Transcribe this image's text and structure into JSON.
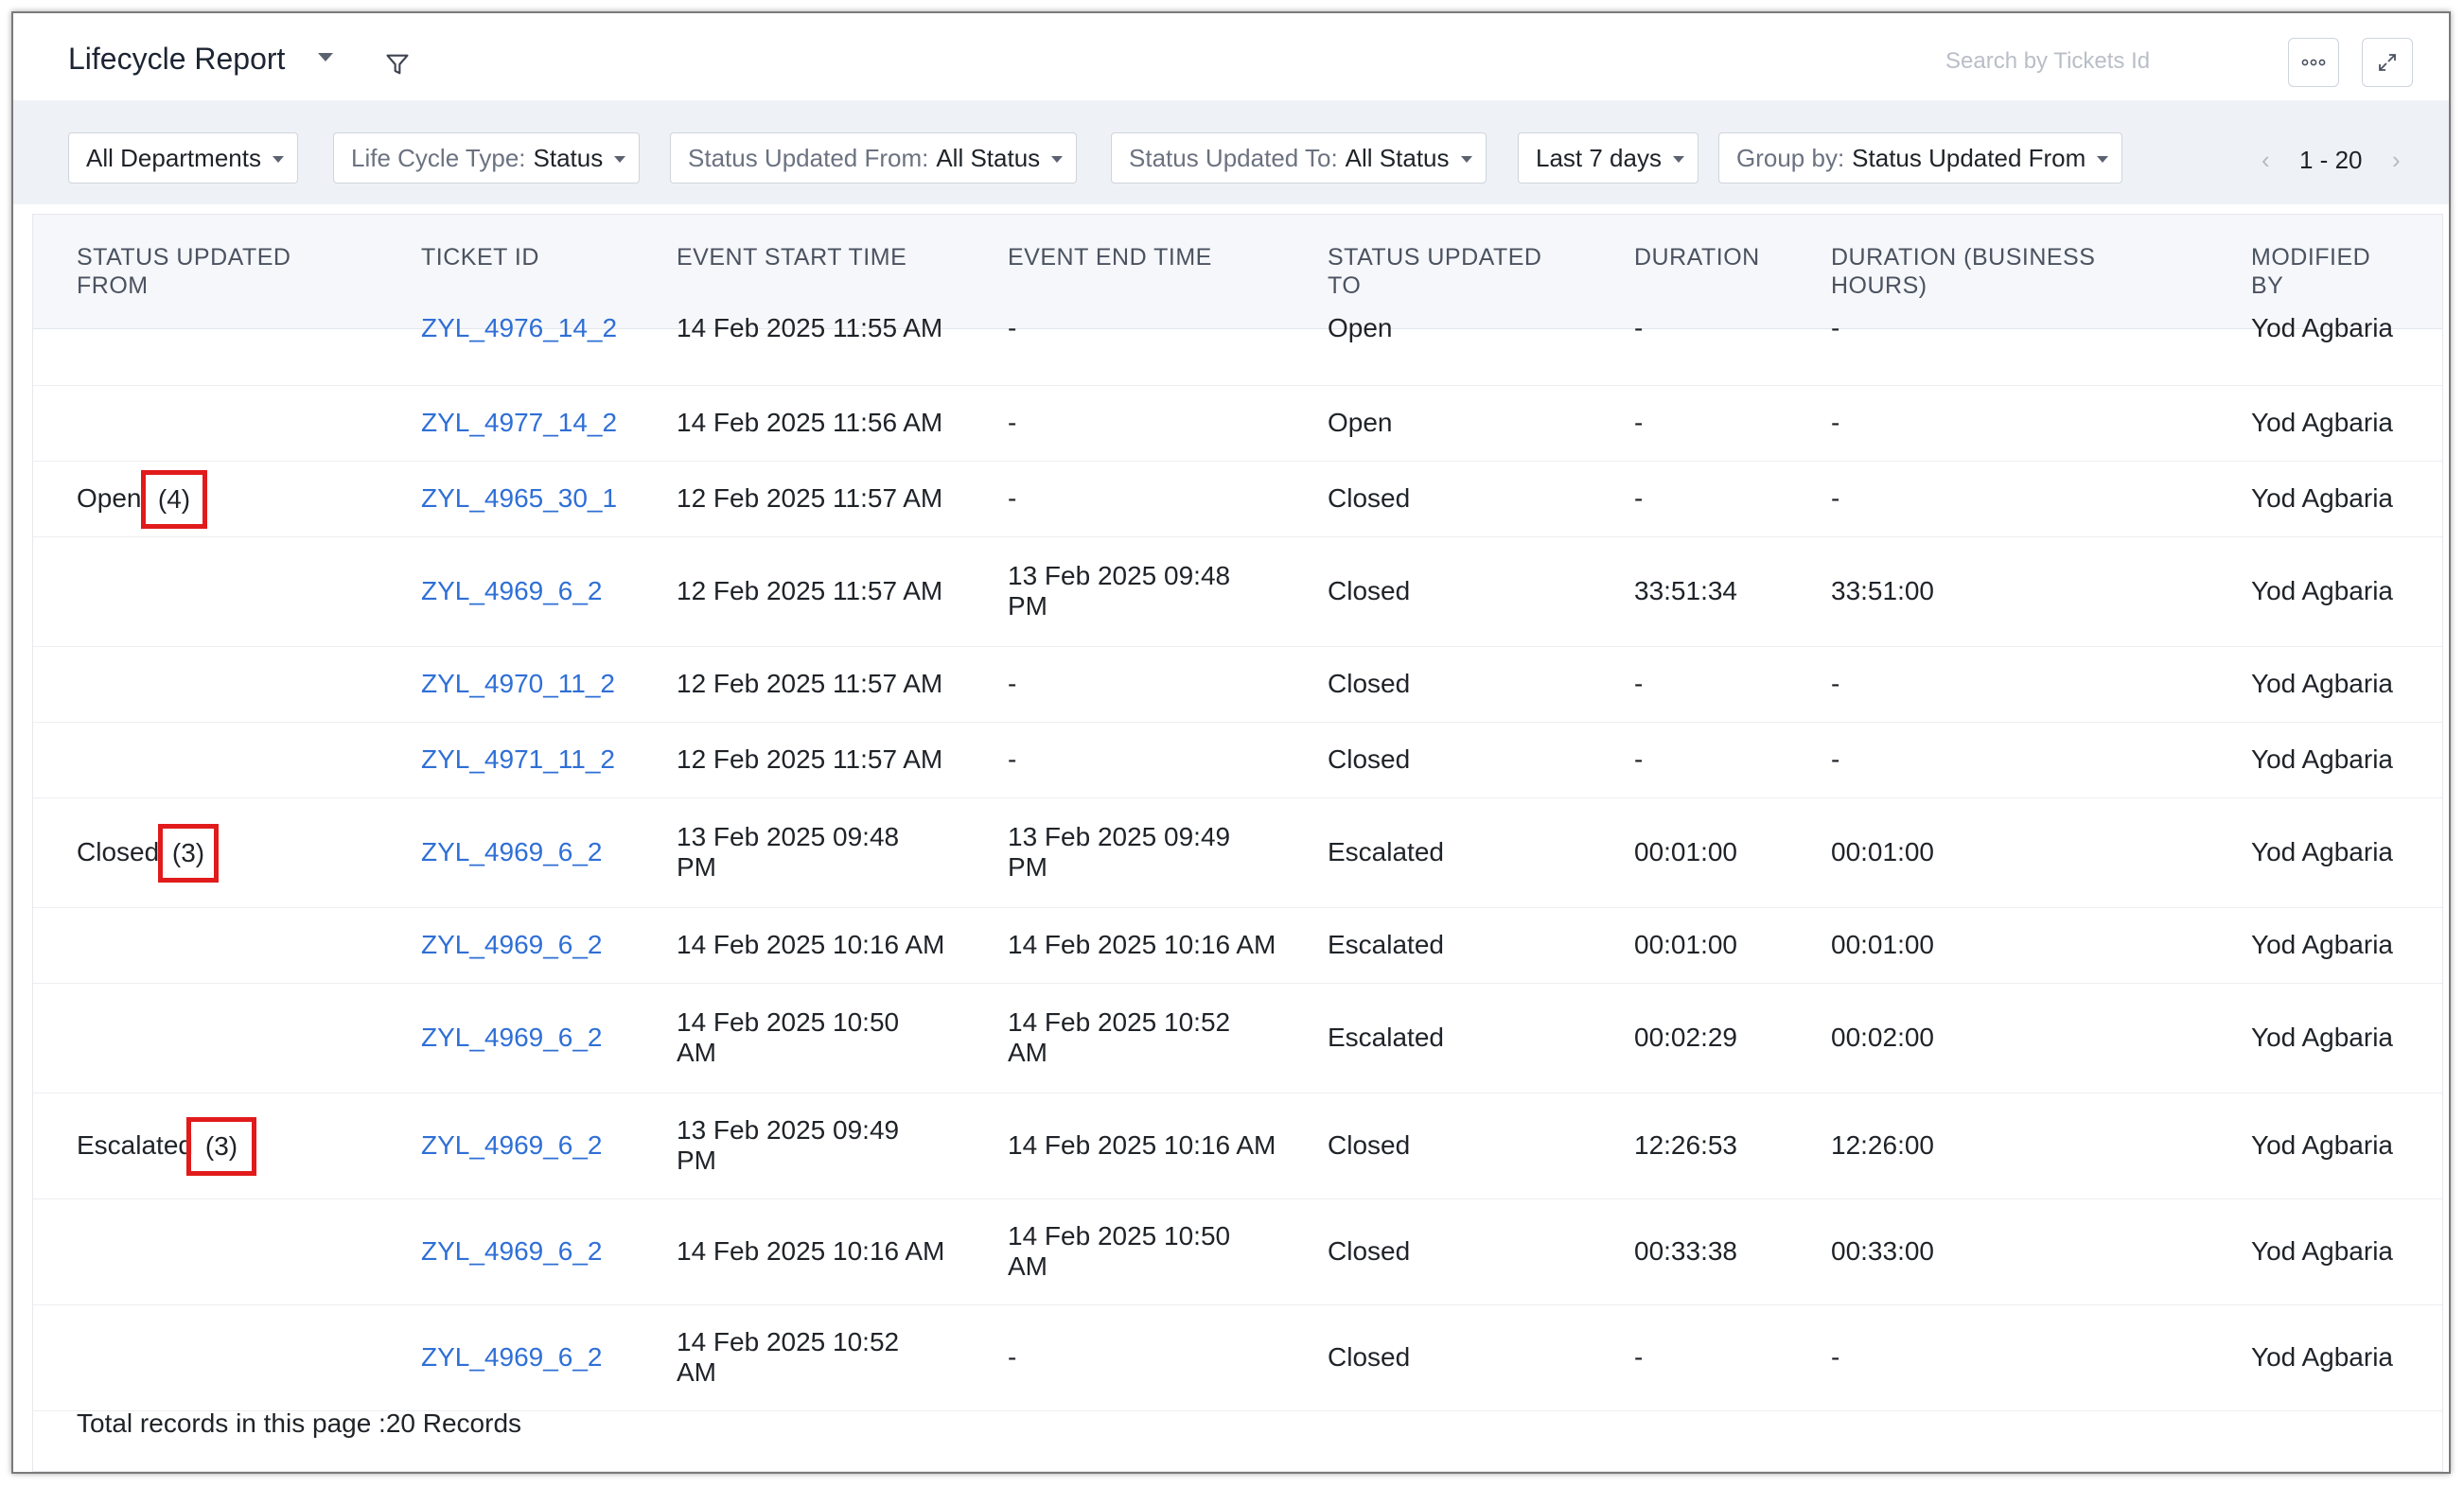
{
  "header": {
    "title": "Lifecycle Report",
    "search_placeholder": "Search by Tickets Id",
    "more_icon": "more-horizontal-icon",
    "expand_icon": "expand-icon"
  },
  "filters": {
    "departments": {
      "value": "All Departments"
    },
    "lifecycle_type": {
      "label": "Life Cycle Type:",
      "value": "Status"
    },
    "status_from": {
      "label": "Status Updated From:",
      "value": "All Status"
    },
    "status_to": {
      "label": "Status Updated To:",
      "value": "All Status"
    },
    "period": {
      "value": "Last 7 days"
    },
    "group_by": {
      "label": "Group by:",
      "value": "Status Updated From"
    }
  },
  "pagination": {
    "range": "1 - 20",
    "prev": "‹",
    "next": "›"
  },
  "table": {
    "headers": {
      "status_from_line1": "STATUS UPDATED",
      "status_from_line2": "FROM",
      "ticket_id": "TICKET ID",
      "event_start": "EVENT START TIME",
      "event_end": "EVENT END TIME",
      "status_to_line1": "STATUS UPDATED",
      "status_to_line2": "TO",
      "duration": "DURATION",
      "duration_bh_line1": "DURATION (BUSINESS",
      "duration_bh_line2": "HOURS)",
      "modified_line1": "MODIFIED",
      "modified_line2": "BY"
    },
    "rows": [
      {
        "group": "",
        "count": "",
        "ticket": "ZYL_4976_14_2",
        "start1": "14 Feb 2025 11:55 AM",
        "start2": "",
        "end1": "-",
        "end2": "",
        "to": "Open",
        "duration": "-",
        "duration_bh": "-",
        "modified": "Yod Agbaria"
      },
      {
        "group": "",
        "count": "",
        "ticket": "ZYL_4977_14_2",
        "start1": "14 Feb 2025 11:56 AM",
        "start2": "",
        "end1": "-",
        "end2": "",
        "to": "Open",
        "duration": "-",
        "duration_bh": "-",
        "modified": "Yod Agbaria"
      },
      {
        "group": "Open",
        "count": "(4)",
        "ticket": "ZYL_4965_30_1",
        "start1": "12 Feb 2025 11:57 AM",
        "start2": "",
        "end1": "-",
        "end2": "",
        "to": "Closed",
        "duration": "-",
        "duration_bh": "-",
        "modified": "Yod Agbaria"
      },
      {
        "group": "",
        "count": "",
        "ticket": "ZYL_4969_6_2",
        "start1": "12 Feb 2025 11:57 AM",
        "start2": "",
        "end1": "13 Feb 2025 09:48",
        "end2": "PM",
        "to": "Closed",
        "duration": "33:51:34",
        "duration_bh": "33:51:00",
        "modified": "Yod Agbaria"
      },
      {
        "group": "",
        "count": "",
        "ticket": "ZYL_4970_11_2",
        "start1": "12 Feb 2025 11:57 AM",
        "start2": "",
        "end1": "-",
        "end2": "",
        "to": "Closed",
        "duration": "-",
        "duration_bh": "-",
        "modified": "Yod Agbaria"
      },
      {
        "group": "",
        "count": "",
        "ticket": "ZYL_4971_11_2",
        "start1": "12 Feb 2025 11:57 AM",
        "start2": "",
        "end1": "-",
        "end2": "",
        "to": "Closed",
        "duration": "-",
        "duration_bh": "-",
        "modified": "Yod Agbaria"
      },
      {
        "group": "Closed",
        "count": "(3)",
        "ticket": "ZYL_4969_6_2",
        "start1": "13 Feb 2025 09:48",
        "start2": "PM",
        "end1": "13 Feb 2025 09:49",
        "end2": "PM",
        "to": "Escalated",
        "duration": "00:01:00",
        "duration_bh": "00:01:00",
        "modified": "Yod Agbaria"
      },
      {
        "group": "",
        "count": "",
        "ticket": "ZYL_4969_6_2",
        "start1": "14 Feb 2025 10:16 AM",
        "start2": "",
        "end1": "14 Feb 2025 10:16 AM",
        "end2": "",
        "to": "Escalated",
        "duration": "00:01:00",
        "duration_bh": "00:01:00",
        "modified": "Yod Agbaria"
      },
      {
        "group": "",
        "count": "",
        "ticket": "ZYL_4969_6_2",
        "start1": "14 Feb 2025 10:50",
        "start2": "AM",
        "end1": "14 Feb 2025 10:52",
        "end2": "AM",
        "to": "Escalated",
        "duration": "00:02:29",
        "duration_bh": "00:02:00",
        "modified": "Yod Agbaria"
      },
      {
        "group": "Escalated",
        "count": "(3)",
        "ticket": "ZYL_4969_6_2",
        "start1": "13 Feb 2025 09:49",
        "start2": "PM",
        "end1": "14 Feb 2025 10:16 AM",
        "end2": "",
        "to": "Closed",
        "duration": "12:26:53",
        "duration_bh": "12:26:00",
        "modified": "Yod Agbaria"
      },
      {
        "group": "",
        "count": "",
        "ticket": "ZYL_4969_6_2",
        "start1": "14 Feb 2025 10:16 AM",
        "start2": "",
        "end1": "14 Feb 2025 10:50",
        "end2": "AM",
        "to": "Closed",
        "duration": "00:33:38",
        "duration_bh": "00:33:00",
        "modified": "Yod Agbaria"
      },
      {
        "group": "",
        "count": "",
        "ticket": "ZYL_4969_6_2",
        "start1": "14 Feb 2025 10:52",
        "start2": "AM",
        "end1": "-",
        "end2": "",
        "to": "Closed",
        "duration": "-",
        "duration_bh": "-",
        "modified": "Yod Agbaria"
      }
    ],
    "footer": "Total records in this page :20 Records"
  },
  "colors": {
    "link": "#2f6fd6",
    "highlight": "#e11b1b",
    "filterbar": "#eef1f6"
  }
}
